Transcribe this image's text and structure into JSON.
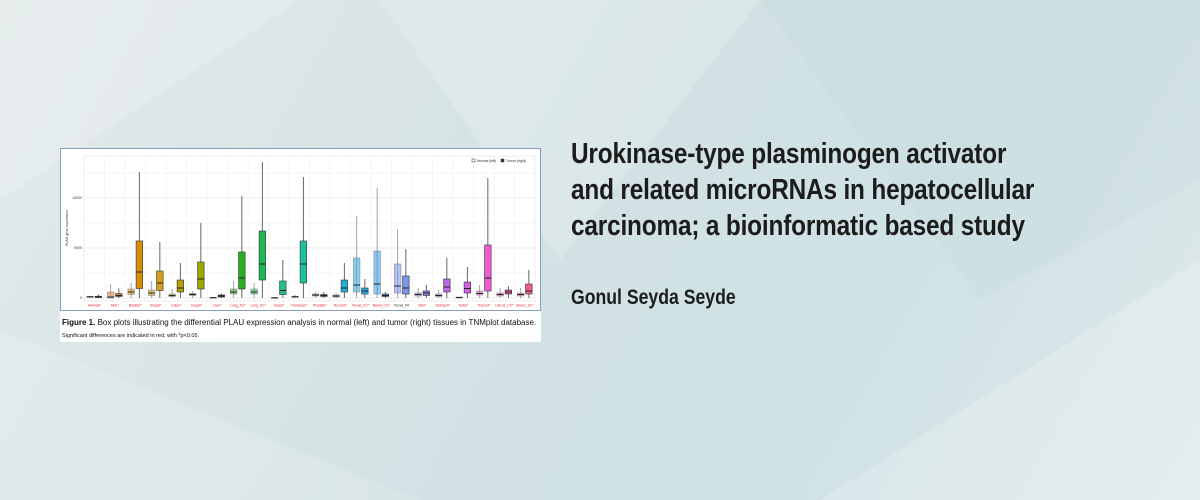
{
  "banner": {
    "title_lines": [
      "Urokinase-type plasminogen activator",
      "and related microRNAs in hepatocellular",
      "carcinoma; a bioinformatic based study"
    ],
    "author": "Gonul Seyda Seyde"
  },
  "figure": {
    "caption_label": "Figure 1.",
    "caption_text": " Box plots illustrating the differential PLAU expression analysis in normal (left) and tumor (right) tissues in TNMplot database.",
    "caption_note": "Significant differences are indicated in red, with *p<0.05."
  },
  "chart_data": {
    "type": "boxplot",
    "ylabel": "PLAU gene expression",
    "ylim": [
      0,
      14000
    ],
    "yticks": [
      "0",
      "5000",
      "10000"
    ],
    "grid": true,
    "legend": {
      "placement": "top-right",
      "entries": [
        "Normal (left)",
        "Tumor (right)"
      ]
    },
    "significant_color": "#e0202a",
    "categories": [
      {
        "label": "Adrenal*",
        "sig": true,
        "color": "#555555",
        "normal": [
          0,
          80,
          120,
          160,
          200
        ],
        "tumor": [
          0,
          50,
          100,
          180,
          350
        ]
      },
      {
        "label": "AML*",
        "sig": true,
        "color": "#e8823a",
        "normal": [
          0,
          0,
          100,
          600,
          1400
        ],
        "tumor": [
          0,
          150,
          250,
          450,
          950
        ]
      },
      {
        "label": "Bladder*",
        "sig": true,
        "color": "#d98c00",
        "normal": [
          0,
          350,
          600,
          900,
          1500
        ],
        "tumor": [
          0,
          950,
          2600,
          5700,
          12600
        ]
      },
      {
        "label": "Breast*",
        "sig": true,
        "color": "#d4a017",
        "normal": [
          0,
          250,
          500,
          800,
          1700
        ],
        "tumor": [
          0,
          750,
          1500,
          2700,
          5600
        ]
      },
      {
        "label": "Colon*",
        "sig": true,
        "color": "#b5a000",
        "normal": [
          0,
          150,
          250,
          400,
          900
        ],
        "tumor": [
          0,
          600,
          1000,
          1800,
          3500
        ]
      },
      {
        "label": "Esoph*",
        "sig": true,
        "color": "#9aa800",
        "normal": [
          0,
          250,
          350,
          450,
          700
        ],
        "tumor": [
          0,
          900,
          1900,
          3600,
          7500
        ]
      },
      {
        "label": "Liver*",
        "sig": true,
        "color": "#444444",
        "normal": [
          0,
          0,
          30,
          60,
          100
        ],
        "tumor": [
          0,
          100,
          200,
          300,
          450
        ]
      },
      {
        "label": "Lung_AC*",
        "sig": true,
        "color": "#22b022",
        "normal": [
          0,
          400,
          600,
          900,
          1700
        ],
        "tumor": [
          0,
          900,
          2000,
          4600,
          10200
        ]
      },
      {
        "label": "Lung_SC*",
        "sig": true,
        "color": "#1db954",
        "normal": [
          0,
          400,
          600,
          900,
          1500
        ],
        "tumor": [
          0,
          1800,
          3400,
          6700,
          13600
        ]
      },
      {
        "label": "Ovary*",
        "sig": true,
        "color": "#1fc08a",
        "normal": [
          0,
          0,
          20,
          50,
          80
        ],
        "tumor": [
          0,
          350,
          750,
          1700,
          3800
        ]
      },
      {
        "label": "Pancreas*",
        "sig": true,
        "color": "#1ec09b",
        "normal": [
          0,
          80,
          120,
          180,
          300
        ],
        "tumor": [
          0,
          1500,
          3400,
          5700,
          12100
        ]
      },
      {
        "label": "Prostate*",
        "sig": true,
        "color": "#20b0b0",
        "normal": [
          0,
          200,
          300,
          400,
          600
        ],
        "tumor": [
          0,
          150,
          250,
          350,
          600
        ]
      },
      {
        "label": "Rectum*",
        "sig": true,
        "color": "#1eb0d8",
        "normal": [
          0,
          100,
          200,
          300,
          500
        ],
        "tumor": [
          0,
          600,
          1000,
          1800,
          3500
        ]
      },
      {
        "label": "Renal_CC*",
        "sig": true,
        "color": "#29aae2",
        "normal": [
          0,
          600,
          1300,
          4000,
          8200
        ],
        "tumor": [
          0,
          400,
          700,
          1000,
          1900
        ]
      },
      {
        "label": "Renal_CH*",
        "sig": true,
        "color": "#2b9ce8",
        "normal": [
          0,
          400,
          1400,
          4700,
          11000
        ],
        "tumor": [
          0,
          150,
          250,
          400,
          600
        ]
      },
      {
        "label": "Renal_PA",
        "sig": false,
        "color": "#7b95ef",
        "normal": [
          0,
          500,
          1200,
          3400,
          6900
        ],
        "tumor": [
          0,
          400,
          1000,
          2200,
          4900
        ]
      },
      {
        "label": "Skin*",
        "sig": true,
        "color": "#9b7ae8",
        "normal": [
          0,
          200,
          350,
          500,
          1000
        ],
        "tumor": [
          0,
          250,
          500,
          700,
          1300
        ]
      },
      {
        "label": "Stomach*",
        "sig": true,
        "color": "#b868e6",
        "normal": [
          0,
          150,
          250,
          400,
          800
        ],
        "tumor": [
          0,
          600,
          1100,
          1900,
          4000
        ]
      },
      {
        "label": "Testis*",
        "sig": true,
        "color": "#d35fe0",
        "normal": [
          0,
          30,
          60,
          80,
          120
        ],
        "tumor": [
          0,
          500,
          950,
          1600,
          3100
        ]
      },
      {
        "label": "Thyroid*",
        "sig": true,
        "color": "#ee5ad3",
        "normal": [
          0,
          300,
          450,
          700,
          1300
        ],
        "tumor": [
          0,
          700,
          2000,
          5300,
          12000
        ]
      },
      {
        "label": "Uterus_CS*",
        "sig": true,
        "color": "#f055a8",
        "normal": [
          0,
          200,
          350,
          500,
          1000
        ],
        "tumor": [
          0,
          400,
          600,
          800,
          1200
        ]
      },
      {
        "label": "Uterus_EC*",
        "sig": true,
        "color": "#f25d86",
        "normal": [
          0,
          200,
          350,
          500,
          1000
        ],
        "tumor": [
          0,
          400,
          700,
          1400,
          2800
        ]
      }
    ]
  }
}
